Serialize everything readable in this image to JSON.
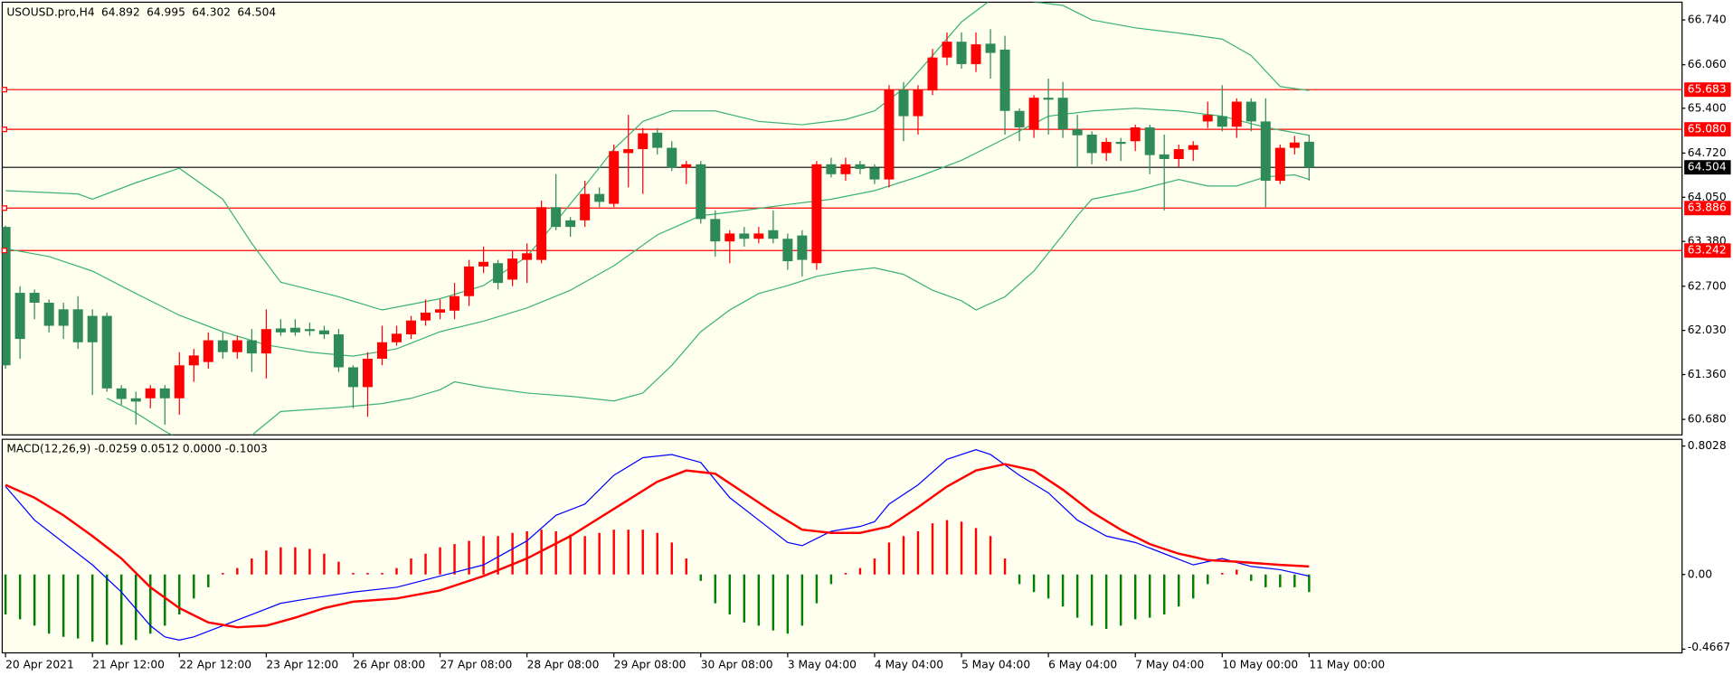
{
  "chart_data": {
    "type": "candlestick",
    "title": "USOUSD.pro,H4",
    "categories": [
      "20 Apr 2021",
      null,
      null,
      null,
      null,
      null,
      "21 Apr 12:00",
      null,
      null,
      null,
      null,
      null,
      "22 Apr 12:00",
      null,
      null,
      null,
      null,
      null,
      "23 Apr 12:00",
      null,
      null,
      null,
      null,
      null,
      "26 Apr 08:00",
      null,
      null,
      null,
      null,
      null,
      "27 Apr 08:00",
      null,
      null,
      null,
      null,
      null,
      "28 Apr 08:00",
      null,
      null,
      null,
      null,
      null,
      "29 Apr 08:00",
      null,
      null,
      null,
      null,
      null,
      "30 Apr 08:00",
      null,
      null,
      null,
      null,
      null,
      "3 May 04:00",
      null,
      null,
      null,
      null,
      null,
      "4 May 04:00",
      null,
      null,
      null,
      null,
      null,
      "5 May 04:00",
      null,
      null,
      null,
      null,
      null,
      "6 May 04:00",
      null,
      null,
      null,
      null,
      null,
      "7 May 04:00",
      null,
      null,
      null,
      null,
      null,
      "10 May 00:00",
      null,
      null,
      null,
      null,
      null,
      "11 May 00:00"
    ],
    "open": [
      63.6,
      62.6,
      62.6,
      62.45,
      62.35,
      62.35,
      62.25,
      62.25,
      61.15,
      61.0,
      61.0,
      61.15,
      61.0,
      61.5,
      61.55,
      61.88,
      61.7,
      61.88,
      61.68,
      62.06,
      62.07,
      62.05,
      62.03,
      61.97,
      61.47,
      61.17,
      61.6,
      61.85,
      61.97,
      62.18,
      62.3,
      62.33,
      62.55,
      63.0,
      63.05,
      62.8,
      63.1,
      63.1,
      63.9,
      63.7,
      63.7,
      64.1,
      63.95,
      64.72,
      64.78,
      65.03,
      64.8,
      64.5,
      64.55,
      63.72,
      63.38,
      63.5,
      63.42,
      63.55,
      63.42,
      63.47,
      63.05,
      64.55,
      64.4,
      64.55,
      64.5,
      64.32,
      65.68,
      65.28,
      65.67,
      66.17,
      66.41,
      66.07,
      66.38,
      66.29,
      65.36,
      65.08,
      65.56,
      65.56,
      65.08,
      65.0,
      64.72,
      64.89,
      64.9,
      65.11,
      64.7,
      64.63,
      64.77,
      65.2,
      65.28,
      65.12,
      65.5,
      65.2,
      64.3,
      64.8,
      64.892
    ],
    "high": [
      63.62,
      62.7,
      62.65,
      62.5,
      62.45,
      62.55,
      62.35,
      62.3,
      61.2,
      61.1,
      61.2,
      61.2,
      61.7,
      61.75,
      62.0,
      62.0,
      61.95,
      62.05,
      62.35,
      62.2,
      62.2,
      62.15,
      62.1,
      62.05,
      61.5,
      61.7,
      62.1,
      62.1,
      62.25,
      62.5,
      62.5,
      62.75,
      63.1,
      63.3,
      63.1,
      63.25,
      63.35,
      64.0,
      64.4,
      63.75,
      64.3,
      64.2,
      64.85,
      65.3,
      65.1,
      65.1,
      64.9,
      64.6,
      64.6,
      63.85,
      63.55,
      63.6,
      63.6,
      63.85,
      63.5,
      63.55,
      64.6,
      64.65,
      64.65,
      64.6,
      64.55,
      65.75,
      65.8,
      65.75,
      66.3,
      66.55,
      66.55,
      66.55,
      66.6,
      66.5,
      65.4,
      65.6,
      65.85,
      65.8,
      65.3,
      65.05,
      64.95,
      64.95,
      65.15,
      65.15,
      65.0,
      64.85,
      64.9,
      65.5,
      65.75,
      65.55,
      65.55,
      65.55,
      64.85,
      64.98,
      64.995
    ],
    "low": [
      61.45,
      61.6,
      62.2,
      62.0,
      61.9,
      61.75,
      61.05,
      61.1,
      60.9,
      60.6,
      60.85,
      60.6,
      60.75,
      61.25,
      61.45,
      61.6,
      61.6,
      61.4,
      61.3,
      61.95,
      61.95,
      61.95,
      61.9,
      61.4,
      60.85,
      60.72,
      61.5,
      61.8,
      61.9,
      62.1,
      62.2,
      62.2,
      62.4,
      62.9,
      62.65,
      62.7,
      62.75,
      63.05,
      63.55,
      63.45,
      63.6,
      63.9,
      63.9,
      64.2,
      64.1,
      64.7,
      64.45,
      64.25,
      63.65,
      63.15,
      63.05,
      63.3,
      63.35,
      63.35,
      62.95,
      62.85,
      62.95,
      64.35,
      64.3,
      64.4,
      64.25,
      64.2,
      64.9,
      65.0,
      65.6,
      66.05,
      66.0,
      65.95,
      65.85,
      65.0,
      64.9,
      64.95,
      65.0,
      64.95,
      64.5,
      64.55,
      64.6,
      64.6,
      64.75,
      64.4,
      63.85,
      64.5,
      64.6,
      65.1,
      65.05,
      64.95,
      65.05,
      63.9,
      64.25,
      64.7,
      64.302
    ],
    "close": [
      61.5,
      61.9,
      62.45,
      62.1,
      62.1,
      61.85,
      61.85,
      61.15,
      60.99,
      60.95,
      61.15,
      61.0,
      61.5,
      61.65,
      61.88,
      61.7,
      61.88,
      61.68,
      62.05,
      62.0,
      62.0,
      62.02,
      61.97,
      61.47,
      61.17,
      61.6,
      61.85,
      61.98,
      62.18,
      62.3,
      62.35,
      62.55,
      63.0,
      63.07,
      62.75,
      63.12,
      63.2,
      63.9,
      63.6,
      63.6,
      64.1,
      63.98,
      64.75,
      64.78,
      65.02,
      64.8,
      64.5,
      64.55,
      63.72,
      63.38,
      63.5,
      63.42,
      63.5,
      63.42,
      63.08,
      63.1,
      64.55,
      64.4,
      64.55,
      64.48,
      64.32,
      65.68,
      65.28,
      65.68,
      66.17,
      66.41,
      66.07,
      66.37,
      66.24,
      65.36,
      65.11,
      65.56,
      65.53,
      65.08,
      64.99,
      64.72,
      64.89,
      64.86,
      65.11,
      64.69,
      64.63,
      64.78,
      64.84,
      65.3,
      65.12,
      65.5,
      65.2,
      64.3,
      64.8,
      64.88,
      64.504
    ],
    "up_color": "#ff0000",
    "down_color": "#2e8b57",
    "ylim": [
      60.445,
      67.009
    ],
    "yticks": [
      {
        "value": 60.68,
        "label": "60.680"
      },
      {
        "value": 61.36,
        "label": "61.360"
      },
      {
        "value": 62.03,
        "label": "62.030"
      },
      {
        "value": 62.7,
        "label": "62.700"
      },
      {
        "value": 63.38,
        "label": "63.380"
      },
      {
        "value": 64.05,
        "label": "64.050"
      },
      {
        "value": 64.72,
        "label": "64.720"
      },
      {
        "value": 65.4,
        "label": "65.400"
      },
      {
        "value": 66.06,
        "label": "66.060"
      },
      {
        "value": 66.74,
        "label": "66.740"
      }
    ],
    "levels": [
      {
        "value": 65.683,
        "label": "65.683"
      },
      {
        "value": 65.08,
        "label": "65.080"
      },
      {
        "value": 63.886,
        "label": "63.886"
      },
      {
        "value": 63.242,
        "label": "63.242"
      }
    ],
    "level_color": "#ff0000",
    "current_price_color": "#000000",
    "band_color": "#3cb371",
    "bands": [
      {
        "x": [
          0,
          5,
          6,
          9,
          12,
          15,
          17,
          19,
          23,
          26,
          30,
          33,
          36,
          38,
          40,
          42,
          44,
          46,
          49,
          52,
          55,
          58,
          60,
          62,
          64,
          66,
          68,
          70,
          73,
          75,
          78,
          81,
          84,
          86,
          88,
          90
        ],
        "values": [
          64.15,
          64.1,
          64.02,
          64.27,
          64.49,
          64.02,
          63.35,
          62.76,
          62.54,
          62.34,
          62.51,
          62.71,
          63.15,
          63.68,
          64.22,
          64.78,
          65.2,
          65.36,
          65.36,
          65.2,
          65.15,
          65.23,
          65.36,
          65.7,
          66.2,
          66.71,
          67.04,
          67.04,
          66.96,
          66.74,
          66.62,
          66.54,
          66.45,
          66.2,
          65.73,
          65.67
        ]
      },
      {
        "x": [
          0,
          3,
          6,
          9,
          12,
          15,
          18,
          21,
          24,
          27,
          30,
          33,
          36,
          39,
          42,
          45,
          48,
          51,
          54,
          57,
          60,
          63,
          66,
          69,
          72,
          75,
          78,
          81,
          84,
          87,
          90
        ],
        "values": [
          63.27,
          63.15,
          62.93,
          62.59,
          62.26,
          62.01,
          61.81,
          61.7,
          61.64,
          61.75,
          62.01,
          62.17,
          62.37,
          62.64,
          63.01,
          63.48,
          63.77,
          63.85,
          63.94,
          64.02,
          64.15,
          64.36,
          64.61,
          64.94,
          65.28,
          65.36,
          65.4,
          65.36,
          65.28,
          65.11,
          64.99
        ]
      },
      {
        "x": [
          7,
          9,
          11,
          14,
          17,
          19,
          23,
          26,
          28,
          30,
          31,
          33,
          36,
          39,
          42,
          44,
          46,
          48,
          50,
          52,
          54,
          56,
          58,
          60,
          62,
          64,
          66,
          67,
          69,
          71,
          73,
          74,
          75,
          78,
          81,
          83,
          85,
          87,
          89,
          90
        ],
        "values": [
          61.0,
          60.78,
          60.5,
          60.16,
          60.44,
          60.8,
          60.86,
          60.92,
          61.0,
          61.13,
          61.25,
          61.17,
          61.08,
          61.03,
          60.96,
          61.08,
          61.5,
          62.01,
          62.34,
          62.59,
          62.71,
          62.85,
          62.93,
          62.98,
          62.88,
          62.64,
          62.48,
          62.34,
          62.54,
          62.93,
          63.48,
          63.77,
          64.02,
          64.15,
          64.32,
          64.22,
          64.22,
          64.36,
          64.39,
          64.32
        ]
      }
    ],
    "indicator": {
      "type": "macd",
      "title": "MACD(12,26,9) -0.0259 0.0512 0.0000 -0.1003",
      "histogram": [
        -0.25,
        -0.28,
        -0.32,
        -0.37,
        -0.39,
        -0.4,
        -0.42,
        -0.44,
        -0.44,
        -0.41,
        -0.37,
        -0.32,
        -0.25,
        -0.15,
        -0.08,
        0.01,
        0.04,
        0.1,
        0.15,
        0.17,
        0.17,
        0.16,
        0.13,
        0.08,
        0.01,
        0.01,
        0.01,
        0.04,
        0.1,
        0.13,
        0.17,
        0.19,
        0.21,
        0.24,
        0.24,
        0.26,
        0.27,
        0.28,
        0.27,
        0.25,
        0.24,
        0.26,
        0.28,
        0.28,
        0.28,
        0.26,
        0.2,
        0.1,
        -0.04,
        -0.18,
        -0.25,
        -0.3,
        -0.32,
        -0.35,
        -0.37,
        -0.32,
        -0.18,
        -0.06,
        0.01,
        0.04,
        0.1,
        0.2,
        0.24,
        0.27,
        0.32,
        0.34,
        0.33,
        0.29,
        0.24,
        0.1,
        -0.06,
        -0.11,
        -0.15,
        -0.2,
        -0.27,
        -0.32,
        -0.34,
        -0.32,
        -0.28,
        -0.27,
        -0.25,
        -0.2,
        -0.15,
        -0.06,
        0.01,
        0.03,
        -0.04,
        -0.08,
        -0.08,
        -0.08,
        -0.11
      ],
      "up_color": "#ff0000",
      "down_color": "#008000",
      "lines": [
        {
          "color": "#0000ff",
          "width": 1,
          "x": [
            0,
            2,
            4,
            6,
            8,
            10,
            11,
            12,
            13,
            15,
            17,
            19,
            21,
            24,
            27,
            30,
            33,
            36,
            38,
            40,
            42,
            44,
            46,
            48,
            50,
            52,
            54,
            55,
            57,
            59,
            60,
            61,
            63,
            65,
            67,
            68,
            70,
            72,
            74,
            76,
            78,
            80,
            82,
            84,
            86,
            88,
            90
          ],
          "values": [
            0.55,
            0.34,
            0.2,
            0.06,
            -0.11,
            -0.32,
            -0.39,
            -0.41,
            -0.39,
            -0.32,
            -0.25,
            -0.18,
            -0.15,
            -0.11,
            -0.08,
            -0.01,
            0.06,
            0.21,
            0.37,
            0.44,
            0.62,
            0.73,
            0.75,
            0.7,
            0.48,
            0.34,
            0.2,
            0.18,
            0.27,
            0.3,
            0.33,
            0.44,
            0.56,
            0.72,
            0.78,
            0.75,
            0.62,
            0.51,
            0.34,
            0.24,
            0.2,
            0.13,
            0.06,
            0.1,
            0.05,
            0.03,
            -0.01
          ]
        },
        {
          "color": "#ff0000",
          "width": 2,
          "x": [
            0,
            2,
            4,
            6,
            8,
            10,
            12,
            14,
            16,
            18,
            20,
            22,
            24,
            27,
            30,
            33,
            36,
            39,
            42,
            45,
            47,
            49,
            51,
            53,
            55,
            57,
            59,
            61,
            63,
            65,
            67,
            69,
            71,
            73,
            75,
            77,
            79,
            81,
            83,
            85,
            88,
            90
          ],
          "values": [
            0.56,
            0.48,
            0.37,
            0.24,
            0.1,
            -0.08,
            -0.21,
            -0.3,
            -0.33,
            -0.32,
            -0.27,
            -0.21,
            -0.17,
            -0.15,
            -0.1,
            -0.01,
            0.1,
            0.24,
            0.41,
            0.58,
            0.65,
            0.63,
            0.51,
            0.39,
            0.28,
            0.26,
            0.26,
            0.3,
            0.42,
            0.55,
            0.65,
            0.69,
            0.65,
            0.53,
            0.39,
            0.28,
            0.19,
            0.13,
            0.09,
            0.08,
            0.06,
            0.05
          ]
        }
      ],
      "ylim": [
        -0.49,
        0.845
      ],
      "yticks": [
        -0.4667,
        {
          "value": 0,
          "label": "0.00"
        },
        0.8028
      ]
    }
  }
}
